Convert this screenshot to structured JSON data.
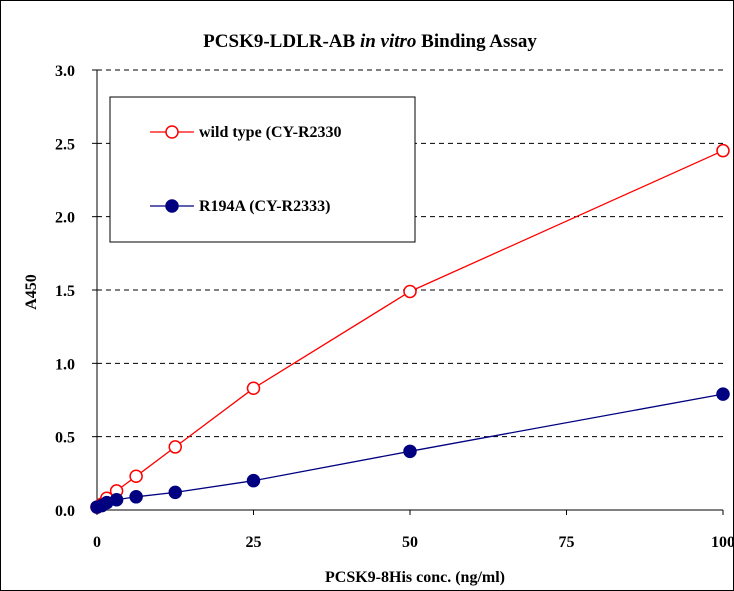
{
  "chart_data": {
    "type": "line",
    "title_parts": [
      "PCSK9-LDLR-AB ",
      "in vitro",
      " Binding Assay"
    ],
    "title": "PCSK9-LDLR-AB in vitro Binding Assay",
    "xlabel": "PCSK9-8His conc. (ng/ml)",
    "ylabel": "A450",
    "xlim": [
      0,
      100
    ],
    "ylim": [
      0,
      3
    ],
    "xticks": [
      0,
      25,
      50,
      75,
      100
    ],
    "xtick_labels": [
      "0",
      "25",
      "50",
      "75",
      "100"
    ],
    "yticks": [
      0,
      0.5,
      1,
      1.5,
      2,
      2.5,
      3
    ],
    "ytick_labels": [
      "0.0",
      "0.5",
      "1.0",
      "1.5",
      "2.0",
      "2.5",
      "3.0"
    ],
    "grid": "horizontal dashed",
    "legend_position": "top-left",
    "series": [
      {
        "name": "wild type (CY-R2330",
        "color": "#ff0000",
        "marker": "open-circle",
        "x": [
          0,
          0.78,
          1.56,
          3.13,
          6.25,
          12.5,
          25,
          50,
          100
        ],
        "y": [
          0.02,
          0.04,
          0.08,
          0.13,
          0.23,
          0.43,
          0.83,
          1.49,
          2.45
        ]
      },
      {
        "name": "R194A (CY-R2333)",
        "color": "#000080",
        "marker": "filled-circle",
        "x": [
          0,
          0.78,
          1.56,
          3.13,
          6.25,
          12.5,
          25,
          50,
          100
        ],
        "y": [
          0.02,
          0.03,
          0.05,
          0.07,
          0.09,
          0.12,
          0.2,
          0.4,
          0.79
        ]
      }
    ]
  }
}
